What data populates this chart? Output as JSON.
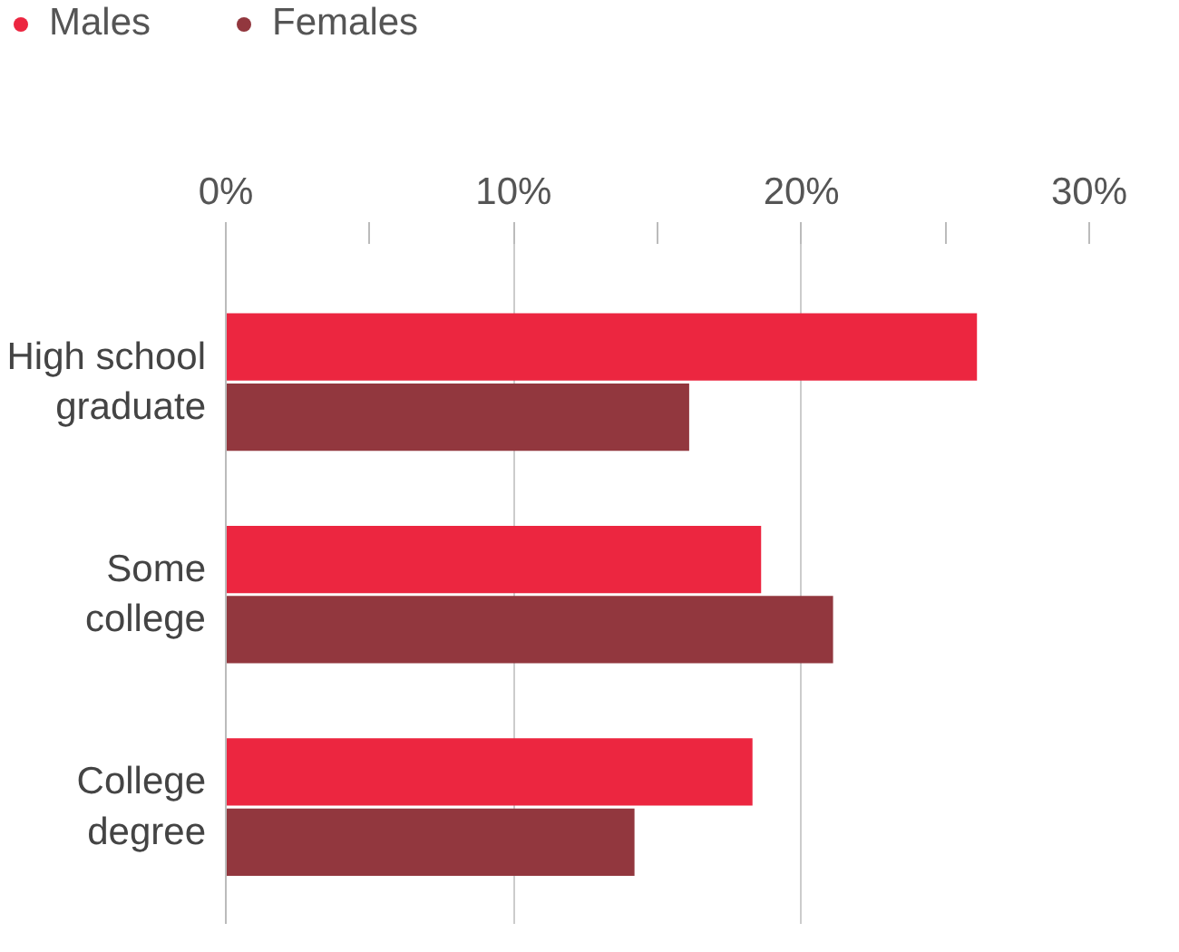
{
  "chart_data": {
    "type": "bar",
    "orientation": "horizontal",
    "categories": [
      "High school graduate",
      "Some college",
      "College degree"
    ],
    "series": [
      {
        "name": "Males",
        "color": "#ec2640",
        "values": [
          26.1,
          18.6,
          18.3
        ]
      },
      {
        "name": "Females",
        "color": "#92373e",
        "values": [
          16.1,
          21.1,
          14.2
        ]
      }
    ],
    "xlim": [
      0,
      30
    ],
    "xticks": [
      {
        "value": 0,
        "label": "0%"
      },
      {
        "value": 5,
        "label": null
      },
      {
        "value": 10,
        "label": "10%"
      },
      {
        "value": 15,
        "label": null
      },
      {
        "value": 20,
        "label": "20%"
      },
      {
        "value": 25,
        "label": null
      },
      {
        "value": 30,
        "label": "30%"
      }
    ],
    "grid": "x",
    "legend": "top left"
  }
}
